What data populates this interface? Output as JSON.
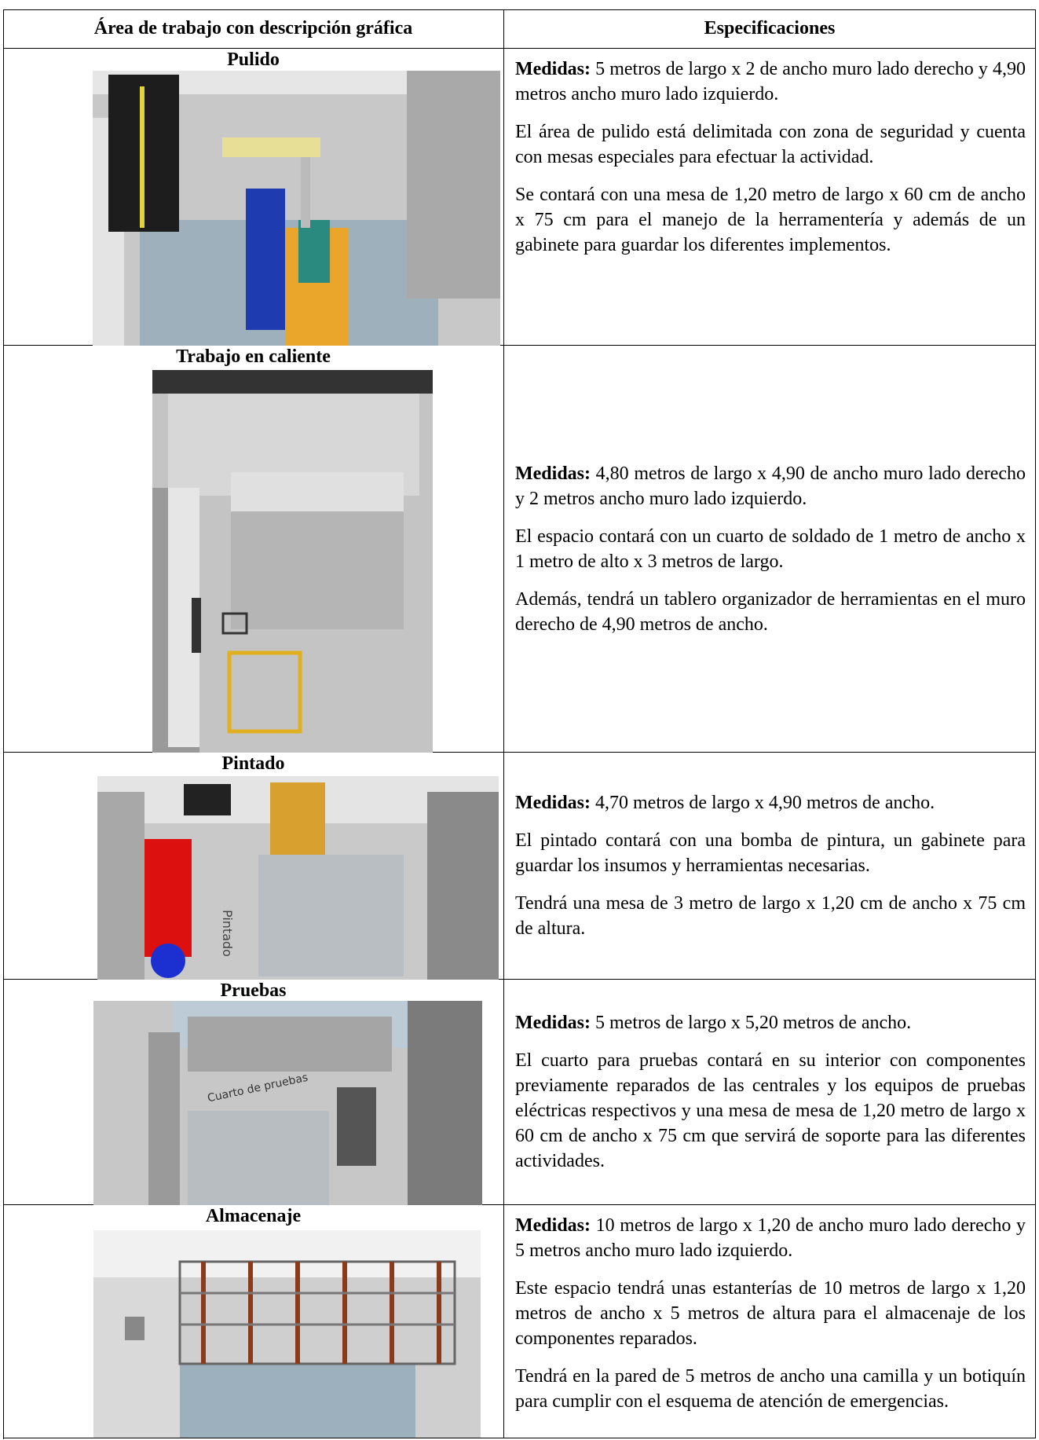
{
  "table": {
    "header": [
      "Área de trabajo con descripción gráfica",
      "Especificaciones"
    ],
    "rows": [
      {
        "area": "Pulido",
        "medidas_label": "Medidas:",
        "medidas": "5 metros de largo x 2 de ancho muro lado derecho y 4,90 metros ancho muro lado izquierdo.",
        "paragraphs": [
          "El área de pulido está delimitada con zona de seguridad y cuenta con mesas especiales para efectuar la actividad.",
          "Se contará con una mesa de 1,20 metro de largo x 60 cm de ancho x 75 cm para el manejo de la herramentería y además de un gabinete para guardar los diferentes implementos."
        ]
      },
      {
        "area": "Trabajo en caliente",
        "medidas_label": "Medidas:",
        "medidas": "4,80 metros de largo x 4,90 de ancho muro lado derecho y 2 metros ancho muro lado izquierdo.",
        "paragraphs": [
          "El espacio contará con un cuarto de soldado de 1 metro de ancho x 1 metro de alto x 3 metros de largo.",
          "Además, tendrá un tablero organizador de herramientas en el muro derecho de 4,90 metros de ancho."
        ]
      },
      {
        "area": "Pintado",
        "medidas_label": "Medidas:",
        "medidas": "4,70 metros de largo x 4,90 metros de ancho.",
        "image_label": "Pintado",
        "paragraphs": [
          "El pintado contará con una bomba de pintura, un gabinete para guardar los insumos y herramientas necesarias.",
          "Tendrá una mesa de 3 metro de largo x 1,20 cm de ancho x 75 cm de altura."
        ]
      },
      {
        "area": "Pruebas",
        "medidas_label": "Medidas:",
        "medidas": "5 metros de largo x 5,20 metros de ancho.",
        "image_label": "Cuarto de pruebas",
        "paragraphs": [
          "El cuarto para pruebas contará en su interior con componentes previamente reparados de las centrales y los equipos de pruebas eléctricas respectivos y una mesa de mesa de 1,20 metro de largo x 60 cm de ancho x 75 cm que servirá de soporte para las diferentes actividades."
        ]
      },
      {
        "area": "Almacenaje",
        "medidas_label": "Medidas:",
        "medidas": "10 metros de largo x 1,20 de ancho muro lado derecho y 5 metros ancho muro lado izquierdo.",
        "paragraphs": [
          "Este espacio tendrá unas estanterías de 10 metros de largo x 1,20 metros de ancho x 5 metros de altura para el almacenaje de los componentes reparados.",
          "Tendrá en la pared de 5 metros de ancho una camilla y un botiquín para cumplir con el esquema de atención de emergencias."
        ]
      }
    ]
  }
}
